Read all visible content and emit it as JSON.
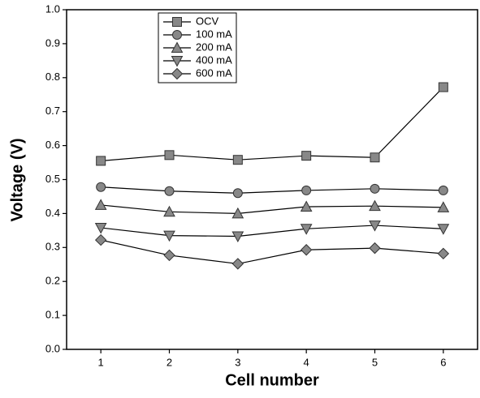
{
  "chart_data": {
    "type": "line",
    "x_label": "Cell number",
    "y_label": "Voltage (V)",
    "x": [
      1,
      2,
      3,
      4,
      5,
      6
    ],
    "xlim": [
      0.5,
      6.5
    ],
    "xticks": [
      1,
      2,
      3,
      4,
      5,
      6
    ],
    "ylim": [
      0,
      1
    ],
    "yticks": [
      {
        "value": 0,
        "label": "0.0"
      },
      0.1,
      0.2,
      0.3,
      0.4,
      0.5,
      0.6,
      0.7,
      0.8,
      0.9,
      {
        "value": 1,
        "label": "1.0"
      }
    ],
    "legend": "top-left",
    "series": [
      {
        "name": "OCV",
        "color": "#888888",
        "marker": "square",
        "values": [
          0.555,
          0.572,
          0.558,
          0.57,
          0.565,
          0.772
        ]
      },
      {
        "name": "100 mA",
        "color": "#888888",
        "marker": "circle",
        "values": [
          0.478,
          0.466,
          0.46,
          0.468,
          0.473,
          0.468
        ]
      },
      {
        "name": "200 mA",
        "color": "#888888",
        "marker": "triangle-up",
        "values": [
          0.425,
          0.405,
          0.4,
          0.42,
          0.422,
          0.418
        ]
      },
      {
        "name": "400 mA",
        "color": "#888888",
        "marker": "triangle-down",
        "values": [
          0.358,
          0.335,
          0.333,
          0.355,
          0.365,
          0.355
        ]
      },
      {
        "name": "600 mA",
        "color": "#888888",
        "marker": "diamond",
        "values": [
          0.322,
          0.277,
          0.252,
          0.293,
          0.298,
          0.282
        ]
      }
    ]
  }
}
